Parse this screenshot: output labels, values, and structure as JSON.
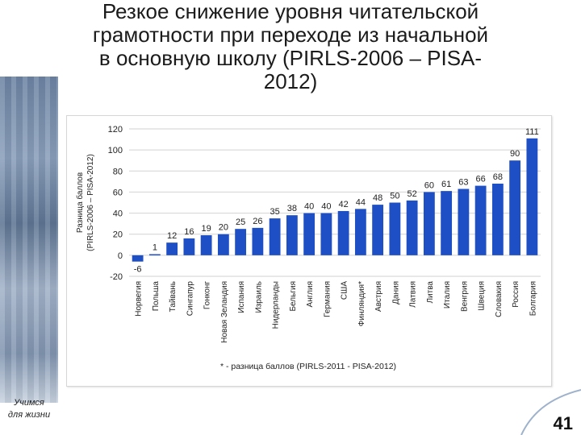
{
  "slide": {
    "title_lines": [
      "Резкое снижение уровня читательской",
      "грамотности при переходе из начальной",
      "в основную школу (PIRLS-2006 – PISA-",
      "2012)"
    ],
    "slogan_lines": [
      "Учимся",
      "для жизни"
    ],
    "page_number": "41"
  },
  "chart_data": {
    "type": "bar",
    "ylabel_lines": [
      "Разница баллов",
      "(PIRLS-2006 – PISA-2012)"
    ],
    "ylim": [
      -20,
      120
    ],
    "yticks": [
      -20,
      0,
      20,
      40,
      60,
      80,
      100,
      120
    ],
    "categories": [
      "Норвегия",
      "Польша",
      "Тайвань",
      "Сингапур",
      "Гонконг",
      "Новая Зеландия",
      "Испания",
      "Израиль",
      "Нидерланды",
      "Бельгия",
      "Англия",
      "Германия",
      "США",
      "Финляндия*",
      "Австрия",
      "Дания",
      "Латвия",
      "Литва",
      "Италия",
      "Венгрия",
      "Швеция",
      "Словакия",
      "Россия",
      "Болгария"
    ],
    "values": [
      -6,
      1,
      12,
      16,
      19,
      20,
      25,
      26,
      35,
      38,
      40,
      40,
      42,
      44,
      48,
      50,
      52,
      60,
      61,
      63,
      66,
      68,
      90,
      111
    ],
    "bar_color": "#1f4fc4",
    "grid": true,
    "footnote": "* - разница баллов (PIRLS-2011 - PISA-2012)"
  }
}
